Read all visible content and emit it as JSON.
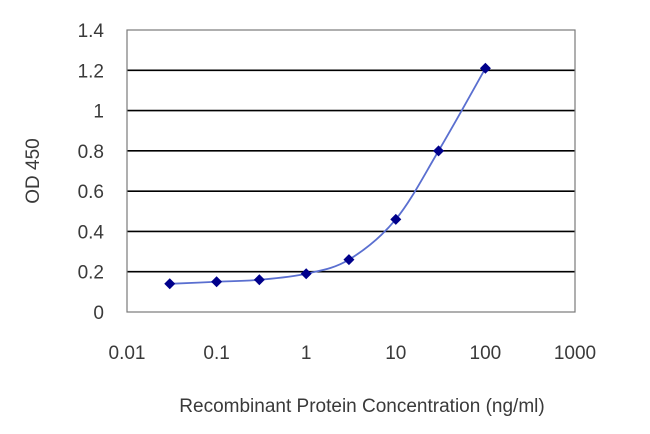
{
  "chart_data": {
    "type": "line",
    "title": "",
    "xlabel": "Recombinant Protein Concentration (ng/ml)",
    "ylabel": "OD 450",
    "x_scale": "log",
    "xlim": [
      0.01,
      1000
    ],
    "ylim": [
      0,
      1.4
    ],
    "x_tick_values": [
      0.01,
      0.1,
      1,
      10,
      100,
      1000
    ],
    "x_tick_labels": [
      "0.01",
      "0.1",
      "1",
      "10",
      "100",
      "1000"
    ],
    "y_tick_values": [
      0,
      0.2,
      0.4,
      0.6,
      0.8,
      1.0,
      1.2,
      1.4
    ],
    "y_tick_labels": [
      "0",
      "0.2",
      "0.4",
      "0.6",
      "0.8",
      "1",
      "1.2",
      "1.4"
    ],
    "grid": "horizontal",
    "legend": "none",
    "series": [
      {
        "x": [
          0.03,
          0.1,
          0.3,
          1,
          3,
          10,
          30,
          100
        ],
        "y": [
          0.14,
          0.15,
          0.16,
          0.19,
          0.26,
          0.46,
          0.8,
          1.21
        ],
        "color": "#00008b"
      }
    ],
    "colors": {
      "line": "#5a6fd0",
      "marker": "#00008b",
      "grid": "#000000",
      "frame": "#7a7a7a"
    }
  }
}
